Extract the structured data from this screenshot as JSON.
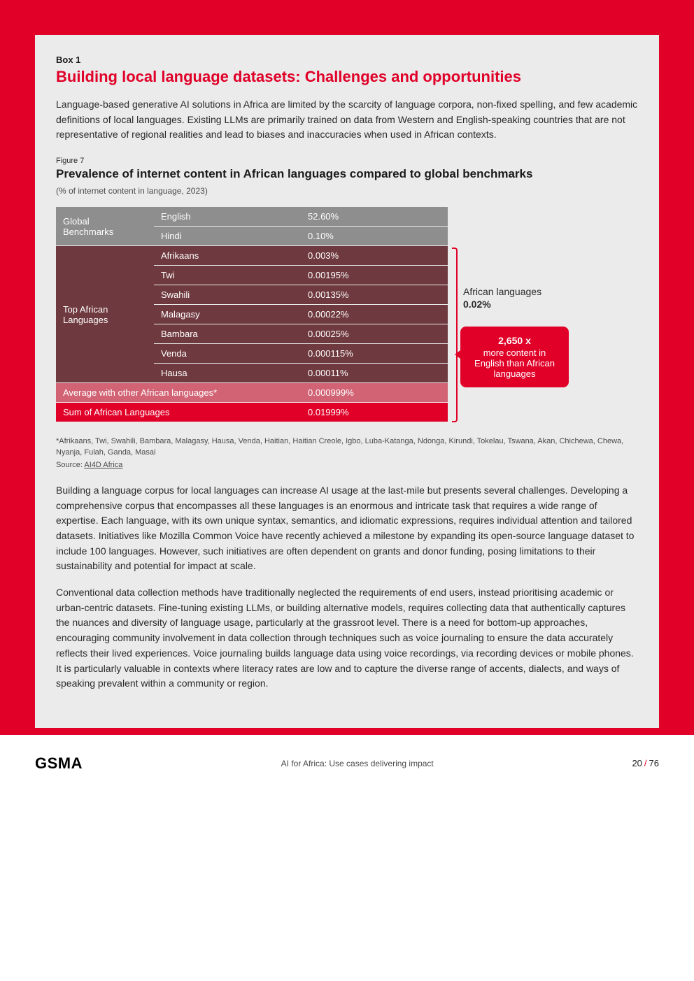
{
  "box": {
    "label": "Box 1",
    "title": "Building local language datasets: Challenges and opportunities",
    "intro": "Language-based generative AI solutions in Africa are limited by the scarcity of language corpora, non-fixed spelling, and few academic definitions of local languages. Existing LLMs are primarily trained on data from Western and English-speaking countries that are not representative of regional realities and lead to biases and inaccuracies when used in African contexts."
  },
  "figure": {
    "label": "Figure 7",
    "title": "Prevalence of internet content in African languages compared to global benchmarks",
    "subtitle": "(% of internet content in language, 2023)"
  },
  "colors": {
    "global_bg": "#8e8e8e",
    "african_bg": "#6f3a3f",
    "avg_bg": "#d16374",
    "sum_bg": "#e00028",
    "box_bg": "#ebebeb",
    "frame_bg": "#e00028"
  },
  "table": {
    "global_label": "Global Benchmarks",
    "african_label": "Top African Languages",
    "global_rows": [
      {
        "lang": "English",
        "val": "52.60%"
      },
      {
        "lang": "Hindi",
        "val": "0.10%"
      }
    ],
    "african_rows": [
      {
        "lang": "Afrikaans",
        "val": "0.003%"
      },
      {
        "lang": "Twi",
        "val": "0.00195%"
      },
      {
        "lang": "Swahili",
        "val": "0.00135%"
      },
      {
        "lang": "Malagasy",
        "val": "0.00022%"
      },
      {
        "lang": "Bambara",
        "val": "0.00025%"
      },
      {
        "lang": "Venda",
        "val": "0.000115%"
      },
      {
        "lang": "Hausa",
        "val": "0.00011%"
      }
    ],
    "avg_row": {
      "label": "Average with other African languages*",
      "val": "0.000999%"
    },
    "sum_row": {
      "label": "Sum of African Languages",
      "val": "0.01999%"
    }
  },
  "side": {
    "label_line1": "African languages",
    "label_line2": "0.02%",
    "callout_big": "2,650 x",
    "callout_rest": "more content in English than African languages"
  },
  "footnote": "*Afrikaans, Twi, Swahili, Bambara, Malagasy, Hausa, Venda, Haitian, Haitian Creole, Igbo, Luba-Katanga, Ndonga, Kirundi, Tokelau, Tswana, Akan, Chichewa, Chewa, Nyanja, Fulah, Ganda, Masai",
  "source_prefix": "Source: ",
  "source_link": "AI4D Africa",
  "para1": "Building a language corpus for local languages can increase AI usage at the last-mile but presents several challenges. Developing a comprehensive corpus that encompasses all these languages is an enormous and intricate task that requires a wide range of expertise. Each language, with its own unique syntax, semantics, and idiomatic expressions, requires individual attention and tailored datasets. Initiatives like Mozilla Common Voice have recently achieved a milestone by expanding its open-source language dataset to include 100 languages. However, such initiatives are often dependent on grants and donor funding, posing limitations to their sustainability and potential for impact at scale.",
  "para2": "Conventional data collection methods have traditionally neglected the requirements of end users, instead prioritising academic or urban-centric datasets. Fine-tuning existing LLMs, or building alternative models, requires collecting data that authentically captures the nuances and diversity of language usage, particularly at the grassroot level. There is a need for bottom-up approaches, encouraging community involvement in data collection through techniques such as voice journaling to ensure the data accurately reflects their lived experiences. Voice journaling builds language data using voice recordings, via recording devices or mobile phones. It is particularly valuable in contexts where literacy rates are low and to capture the diverse range of accents, dialects, and ways of speaking prevalent within a community or region.",
  "footer": {
    "logo": "GSMA",
    "doc_title": "AI for Africa: Use cases delivering impact",
    "page": "20",
    "total": "76"
  }
}
